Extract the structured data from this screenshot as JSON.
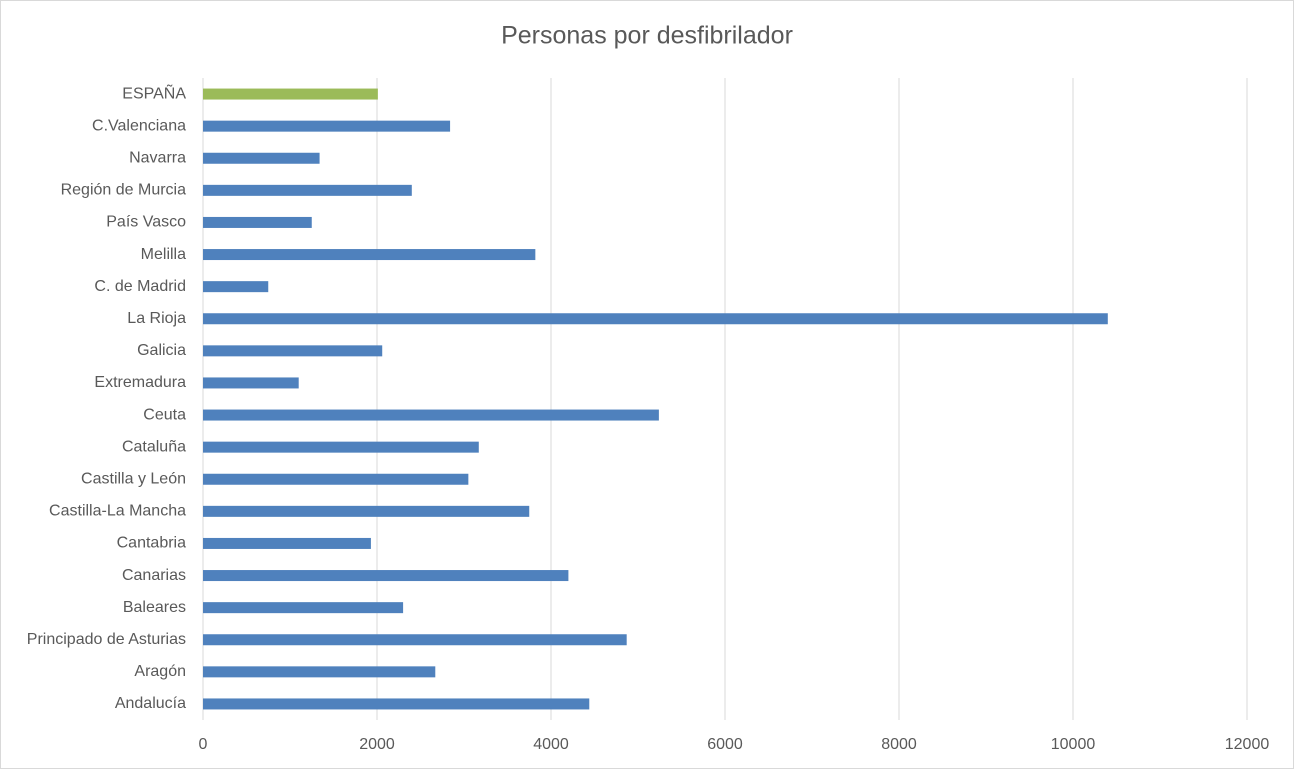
{
  "chart_data": {
    "type": "hbar",
    "title": "Personas por desfibrilador",
    "categories": [
      "ESPAÑA",
      "C.Valenciana",
      "Navarra",
      "Región de Murcia",
      "País Vasco",
      "Melilla",
      "C. de Madrid",
      "La Rioja",
      "Galicia",
      "Extremadura",
      "Ceuta",
      "Cataluña",
      "Castilla y León",
      "Castilla-La Mancha",
      "Cantabria",
      "Canarias",
      "Baleares",
      "Principado de Asturias",
      "Aragón",
      "Andalucía"
    ],
    "values": [
      2010,
      2840,
      1340,
      2400,
      1250,
      3820,
      750,
      10400,
      2060,
      1100,
      5240,
      3170,
      3050,
      3750,
      1930,
      4200,
      2300,
      4870,
      2670,
      4440
    ],
    "colors": [
      "#9bbb59",
      "#4f81bd",
      "#4f81bd",
      "#4f81bd",
      "#4f81bd",
      "#4f81bd",
      "#4f81bd",
      "#4f81bd",
      "#4f81bd",
      "#4f81bd",
      "#4f81bd",
      "#4f81bd",
      "#4f81bd",
      "#4f81bd",
      "#4f81bd",
      "#4f81bd",
      "#4f81bd",
      "#4f81bd",
      "#4f81bd",
      "#4f81bd"
    ],
    "xlim": [
      0,
      12000
    ],
    "xticks": [
      0,
      2000,
      4000,
      6000,
      8000,
      10000,
      12000
    ],
    "grid": true
  }
}
